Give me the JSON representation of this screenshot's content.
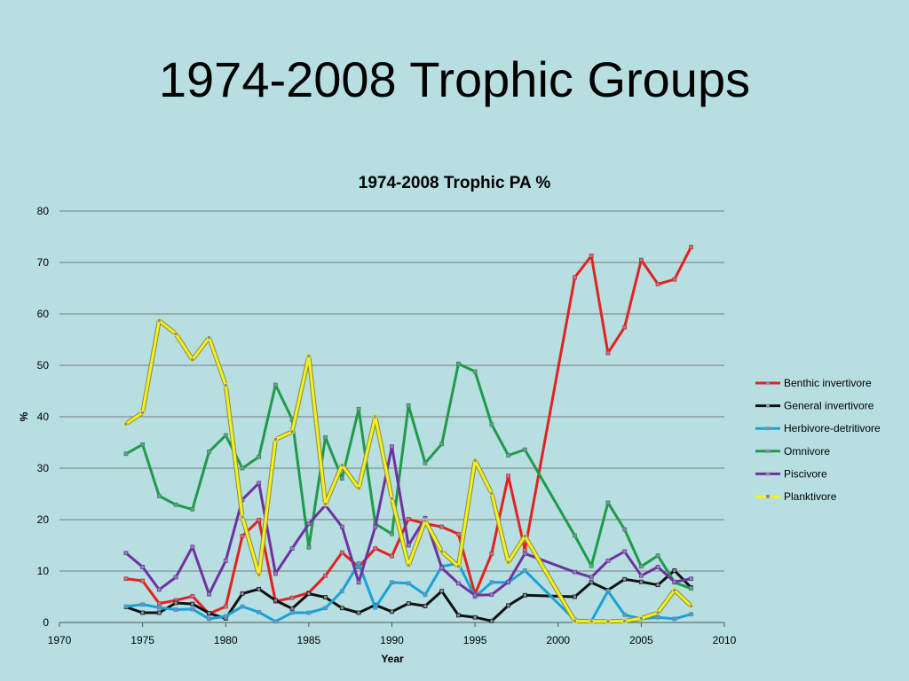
{
  "slide": {
    "title": "1974-2008 Trophic Groups"
  },
  "chart_data": {
    "type": "line",
    "title": "1974-2008 Trophic PA %",
    "xlabel": "Year",
    "ylabel": "%",
    "xlim": [
      1970,
      2010
    ],
    "ylim": [
      0,
      80
    ],
    "xticks": [
      1970,
      1975,
      1980,
      1985,
      1990,
      1995,
      2000,
      2005,
      2010
    ],
    "yticks": [
      0,
      10,
      20,
      30,
      40,
      50,
      60,
      70,
      80
    ],
    "grid": "horizontal",
    "legend_position": "right",
    "x": [
      1974,
      1975,
      1976,
      1977,
      1978,
      1979,
      1980,
      1981,
      1982,
      1983,
      1984,
      1985,
      1986,
      1987,
      1988,
      1989,
      1990,
      1991,
      1992,
      1993,
      1994,
      1995,
      1996,
      1997,
      1998,
      2001,
      2002,
      2003,
      2004,
      2005,
      2006,
      2007,
      2008
    ],
    "series": [
      {
        "name": "Benthic invertivore",
        "color": "#e2221f",
        "values": [
          8.5,
          8.1,
          3.7,
          4.3,
          5.1,
          1.7,
          3.1,
          16.8,
          19.9,
          4.1,
          4.8,
          5.8,
          9.1,
          13.6,
          10.8,
          14.4,
          12.9,
          20.1,
          19.2,
          18.6,
          17.2,
          5.5,
          13.4,
          28.5,
          14.1,
          67.1,
          71.3,
          52.4,
          57.4,
          70.5,
          65.8,
          66.7,
          73.0
        ]
      },
      {
        "name": "General invertivore",
        "color": "#111111",
        "values": [
          3.0,
          1.9,
          1.9,
          3.8,
          3.6,
          1.8,
          0.8,
          5.6,
          6.5,
          4.3,
          2.7,
          5.6,
          4.9,
          2.8,
          1.9,
          3.4,
          2.1,
          3.7,
          3.2,
          6.1,
          1.4,
          1.0,
          0.3,
          3.3,
          5.3,
          5.0,
          7.8,
          6.3,
          8.4,
          7.9,
          7.3,
          10.1,
          6.8
        ]
      },
      {
        "name": "Herbivore-detritivore",
        "color": "#1ba1d8",
        "values": [
          3.1,
          3.5,
          2.9,
          2.5,
          2.6,
          0.7,
          1.2,
          3.1,
          2.0,
          0.2,
          1.9,
          1.9,
          2.8,
          6.1,
          11.5,
          2.9,
          7.8,
          7.6,
          5.4,
          10.9,
          11.5,
          5.0,
          7.8,
          7.8,
          10.1,
          0.5,
          0.3,
          6.1,
          1.5,
          0.7,
          1.0,
          0.7,
          1.6
        ]
      },
      {
        "name": "Omnivore",
        "color": "#1f9a49",
        "values": [
          32.8,
          34.6,
          24.6,
          22.9,
          22.0,
          33.2,
          36.4,
          30.0,
          32.2,
          46.2,
          39.5,
          14.6,
          36.0,
          28.0,
          41.5,
          19.2,
          17.2,
          42.2,
          31.0,
          34.7,
          50.3,
          48.8,
          38.5,
          32.5,
          33.6,
          16.9,
          11.0,
          23.3,
          18.1,
          10.9,
          13.0,
          7.8,
          6.6
        ]
      },
      {
        "name": "Piscivore",
        "color": "#7031a0",
        "values": [
          13.5,
          10.8,
          6.4,
          8.8,
          14.7,
          5.5,
          12.0,
          23.9,
          27.1,
          9.5,
          14.4,
          19.2,
          22.8,
          18.6,
          7.8,
          18.6,
          34.2,
          15.0,
          20.3,
          10.6,
          7.6,
          5.3,
          5.4,
          7.9,
          13.4,
          9.8,
          8.8,
          12.0,
          13.8,
          9.1,
          10.8,
          7.9,
          8.5
        ]
      },
      {
        "name": "Planktivore",
        "color": "#f5f020",
        "values": [
          38.6,
          40.8,
          58.7,
          56.1,
          51.1,
          55.4,
          46.1,
          20.5,
          9.3,
          35.6,
          37.1,
          51.8,
          23.0,
          30.6,
          26.1,
          40.0,
          24.1,
          11.1,
          19.8,
          13.8,
          10.9,
          31.5,
          25.1,
          11.7,
          16.8,
          0.3,
          0.2,
          0.2,
          0.3,
          0.8,
          1.9,
          6.3,
          3.2
        ]
      }
    ]
  }
}
